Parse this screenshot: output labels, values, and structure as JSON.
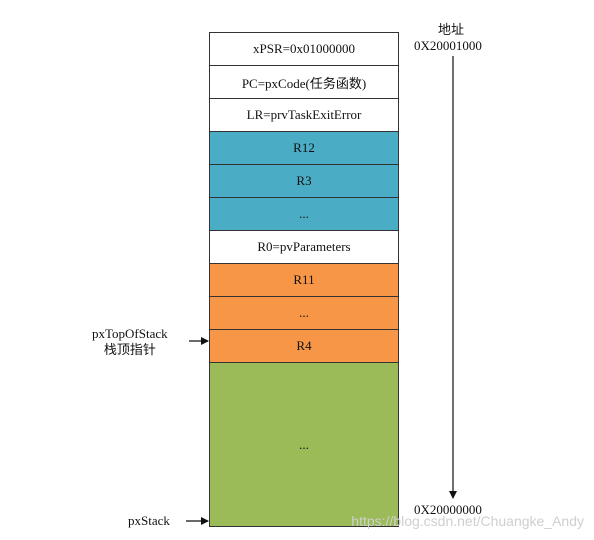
{
  "address": {
    "heading": "地址",
    "high": "0X20001000",
    "low": "0X20000000"
  },
  "stack_cells": [
    {
      "label": "xPSR=0x01000000",
      "color": "#ffffff"
    },
    {
      "label": "PC=pxCode(任务函数)",
      "color": "#ffffff"
    },
    {
      "label": "LR=prvTaskExitError",
      "color": "#ffffff"
    },
    {
      "label": "R12",
      "color": "#4bacc6"
    },
    {
      "label": "R3",
      "color": "#4bacc6"
    },
    {
      "label": "...",
      "color": "#4bacc6"
    },
    {
      "label": "R0=pvParameters",
      "color": "#ffffff"
    },
    {
      "label": "R11",
      "color": "#f79646"
    },
    {
      "label": "...",
      "color": "#f79646"
    },
    {
      "label": "R4",
      "color": "#f79646"
    },
    {
      "label": "...",
      "color": "#9bbb59"
    }
  ],
  "pointers": {
    "top_of_stack": "pxTopOfStack",
    "top_of_stack_cn": "栈顶指针",
    "stack_base": "pxStack"
  },
  "watermark": "https://blog.csdn.net/Chuangke_Andy"
}
